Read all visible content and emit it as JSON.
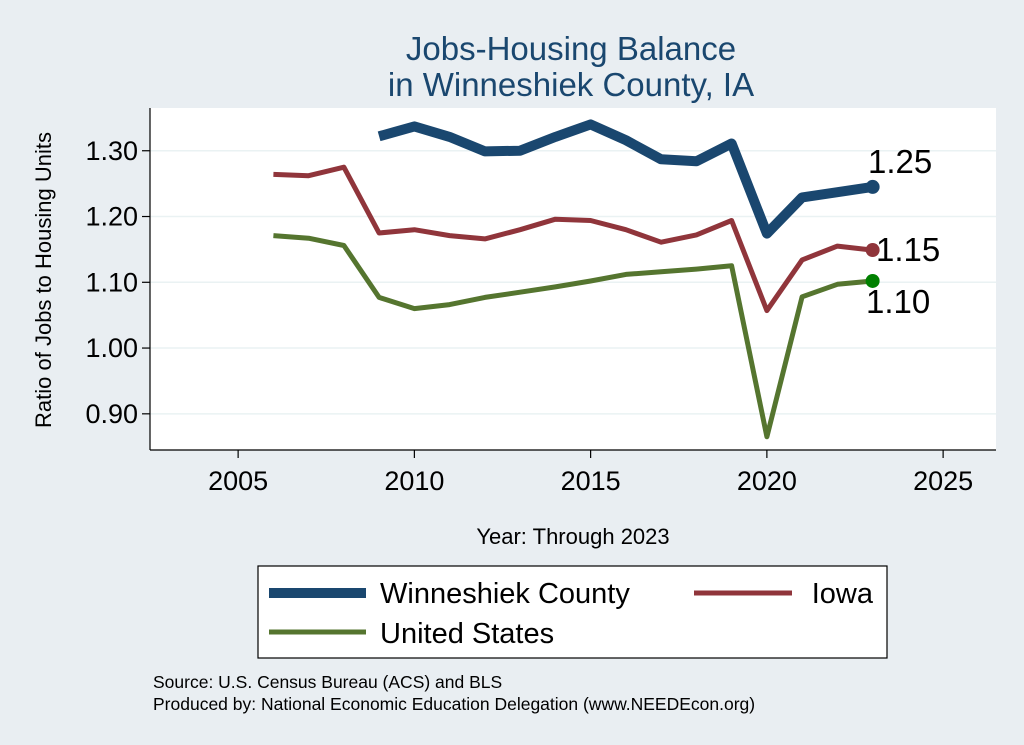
{
  "chart_data": {
    "type": "line",
    "title": [
      "Jobs-Housing Balance",
      "in Winneshiek County, IA"
    ],
    "xlabel": "Year: Through 2023",
    "ylabel": "Ratio of Jobs to Housing Units",
    "xlim": [
      2002.5,
      2026.5
    ],
    "ylim": [
      0.845,
      1.365
    ],
    "xticks": [
      2005,
      2010,
      2015,
      2020,
      2025
    ],
    "yticks": [
      0.9,
      1.0,
      1.1,
      1.2,
      1.3
    ],
    "ytick_labels": [
      "0.90",
      "1.00",
      "1.10",
      "1.20",
      "1.30"
    ],
    "grid": true,
    "legend_position": "bottom",
    "series": [
      {
        "name": "Winneshiek County",
        "color": "#1a476f",
        "x": [
          2009,
          2010,
          2011,
          2012,
          2013,
          2014,
          2015,
          2016,
          2017,
          2018,
          2019,
          2020,
          2021,
          2022,
          2023
        ],
        "values": [
          1.322,
          1.337,
          1.321,
          1.299,
          1.3,
          1.321,
          1.34,
          1.316,
          1.287,
          1.284,
          1.311,
          1.174,
          1.229,
          1.237,
          1.245
        ],
        "end_label": "1.25"
      },
      {
        "name": "Iowa",
        "color": "#90353b",
        "x": [
          2006,
          2007,
          2008,
          2009,
          2010,
          2011,
          2012,
          2013,
          2014,
          2015,
          2016,
          2017,
          2018,
          2019,
          2020,
          2021,
          2022,
          2023
        ],
        "values": [
          1.264,
          1.262,
          1.275,
          1.175,
          1.18,
          1.171,
          1.166,
          1.18,
          1.196,
          1.194,
          1.18,
          1.161,
          1.172,
          1.194,
          1.057,
          1.134,
          1.155,
          1.149
        ],
        "end_label": "1.15"
      },
      {
        "name": "United States",
        "color": "#55752f",
        "end_color": "#008000",
        "x": [
          2006,
          2007,
          2008,
          2009,
          2010,
          2011,
          2012,
          2013,
          2014,
          2015,
          2016,
          2017,
          2018,
          2019,
          2020,
          2021,
          2022,
          2023
        ],
        "values": [
          1.171,
          1.167,
          1.156,
          1.077,
          1.06,
          1.066,
          1.077,
          1.085,
          1.093,
          1.102,
          1.112,
          1.116,
          1.12,
          1.125,
          0.865,
          1.078,
          1.097,
          1.102
        ],
        "end_label": "1.10"
      }
    ],
    "source": "Source: U.S. Census Bureau (ACS) and BLS",
    "producer": "Produced by: National Economic Education Delegation (www.NEEDEcon.org)"
  }
}
